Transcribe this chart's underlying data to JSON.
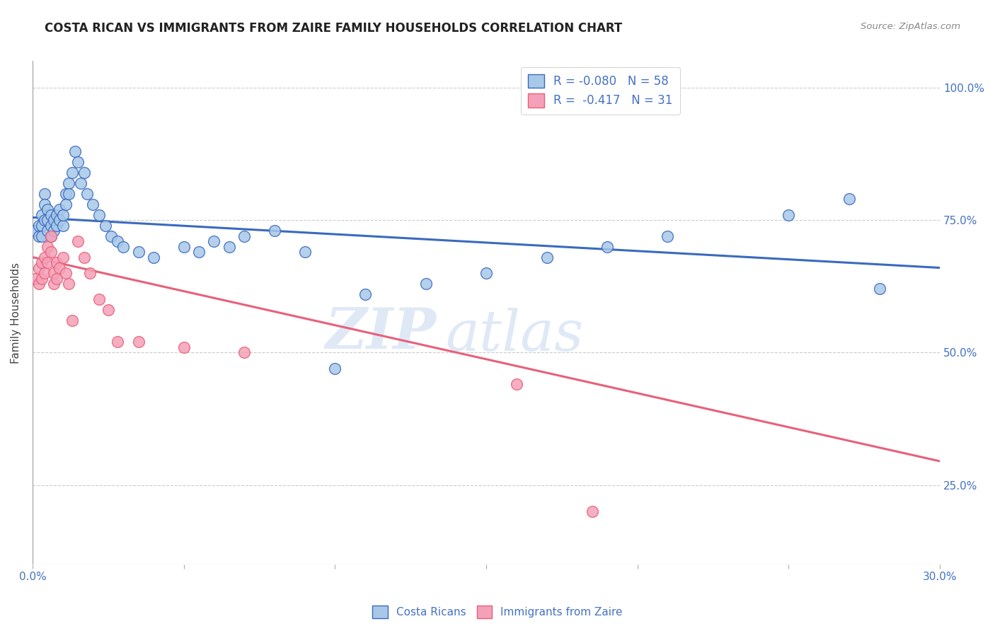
{
  "title": "COSTA RICAN VS IMMIGRANTS FROM ZAIRE FAMILY HOUSEHOLDS CORRELATION CHART",
  "source": "Source: ZipAtlas.com",
  "ylabel": "Family Households",
  "xlim": [
    0.0,
    0.3
  ],
  "ylim": [
    0.1,
    1.05
  ],
  "color_blue": "#a8c8e8",
  "color_pink": "#f4a0b8",
  "line_blue": "#3a6abf",
  "line_pink": "#e8607a",
  "text_color": "#4472c4",
  "watermark_zip": "ZIP",
  "watermark_atlas": "atlas",
  "blue_trendline_x": [
    0.0,
    0.3
  ],
  "blue_trendline_y": [
    0.755,
    0.66
  ],
  "pink_trendline_x": [
    0.0,
    0.3
  ],
  "pink_trendline_y": [
    0.68,
    0.295
  ],
  "cr_x": [
    0.001,
    0.002,
    0.002,
    0.003,
    0.003,
    0.003,
    0.004,
    0.004,
    0.004,
    0.005,
    0.005,
    0.005,
    0.006,
    0.006,
    0.006,
    0.007,
    0.007,
    0.008,
    0.008,
    0.009,
    0.009,
    0.01,
    0.01,
    0.011,
    0.011,
    0.012,
    0.012,
    0.013,
    0.014,
    0.015,
    0.016,
    0.017,
    0.018,
    0.02,
    0.022,
    0.024,
    0.026,
    0.028,
    0.03,
    0.035,
    0.04,
    0.05,
    0.055,
    0.06,
    0.065,
    0.07,
    0.08,
    0.09,
    0.1,
    0.11,
    0.13,
    0.15,
    0.17,
    0.19,
    0.21,
    0.25,
    0.27,
    0.28
  ],
  "cr_y": [
    0.73,
    0.74,
    0.72,
    0.76,
    0.74,
    0.72,
    0.8,
    0.78,
    0.75,
    0.77,
    0.75,
    0.73,
    0.76,
    0.74,
    0.72,
    0.75,
    0.73,
    0.76,
    0.74,
    0.77,
    0.75,
    0.74,
    0.76,
    0.8,
    0.78,
    0.82,
    0.8,
    0.84,
    0.88,
    0.86,
    0.82,
    0.84,
    0.8,
    0.78,
    0.76,
    0.74,
    0.72,
    0.71,
    0.7,
    0.69,
    0.68,
    0.7,
    0.69,
    0.71,
    0.7,
    0.72,
    0.73,
    0.69,
    0.47,
    0.61,
    0.63,
    0.65,
    0.68,
    0.7,
    0.72,
    0.76,
    0.79,
    0.62
  ],
  "zr_x": [
    0.001,
    0.002,
    0.002,
    0.003,
    0.003,
    0.004,
    0.004,
    0.005,
    0.005,
    0.006,
    0.006,
    0.007,
    0.007,
    0.008,
    0.008,
    0.009,
    0.01,
    0.011,
    0.012,
    0.013,
    0.015,
    0.017,
    0.019,
    0.022,
    0.025,
    0.028,
    0.035,
    0.05,
    0.07,
    0.16,
    0.185
  ],
  "zr_y": [
    0.64,
    0.66,
    0.63,
    0.67,
    0.64,
    0.68,
    0.65,
    0.7,
    0.67,
    0.72,
    0.69,
    0.65,
    0.63,
    0.67,
    0.64,
    0.66,
    0.68,
    0.65,
    0.63,
    0.56,
    0.71,
    0.68,
    0.65,
    0.6,
    0.58,
    0.52,
    0.52,
    0.51,
    0.5,
    0.44,
    0.2
  ]
}
